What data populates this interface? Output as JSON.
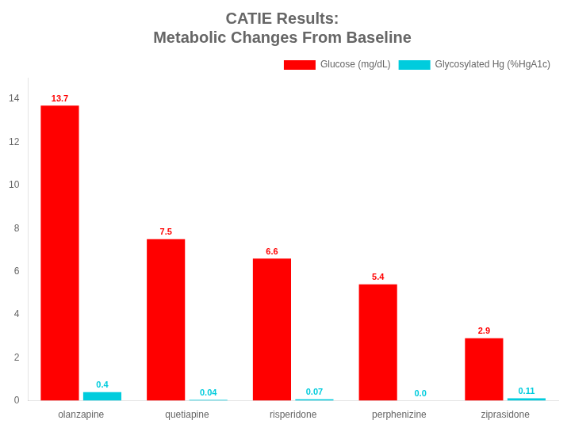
{
  "chart_data": {
    "type": "bar",
    "title": "CATIE Results:",
    "subtitle": "Metabolic Changes From Baseline",
    "categories": [
      "olanzapine",
      "quetiapine",
      "risperidone",
      "perphenizine",
      "ziprasidone"
    ],
    "series": [
      {
        "name": "Glucose (mg/dL)",
        "color": "#ff0000",
        "values": [
          13.7,
          7.5,
          6.6,
          5.4,
          2.9
        ]
      },
      {
        "name": "Glycosylated Hg (%HgA1c)",
        "color": "#00ccdd",
        "values": [
          0.4,
          0.04,
          0.07,
          0.0,
          0.11
        ],
        "value_labels": [
          "0.4",
          "0.04",
          "0.07",
          "0.0",
          "0.11"
        ]
      }
    ],
    "ylim": [
      0,
      15
    ],
    "yticks": [
      0,
      2,
      4,
      6,
      8,
      10,
      12,
      14
    ],
    "grid": false,
    "legend": "upper right",
    "data_labels": true
  }
}
